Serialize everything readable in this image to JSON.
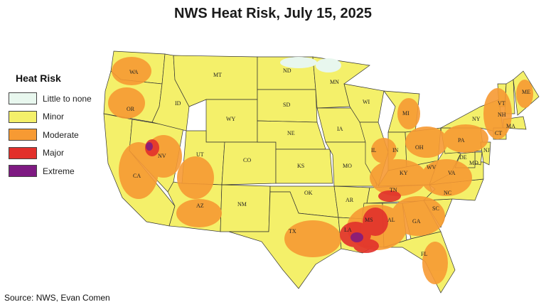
{
  "title": "NWS Heat Risk, July 15, 2025",
  "source": "Source: NWS, Evan Comen",
  "legend": {
    "title": "Heat Risk",
    "items": [
      {
        "label": "Little to none",
        "color": "#e8f7ee"
      },
      {
        "label": "Minor",
        "color": "#f4f06a"
      },
      {
        "label": "Moderate",
        "color": "#f79a33"
      },
      {
        "label": "Major",
        "color": "#e2302b"
      },
      {
        "label": "Extreme",
        "color": "#7e1a82"
      }
    ]
  },
  "states": [
    "WA",
    "OR",
    "CA",
    "NV",
    "ID",
    "MT",
    "WY",
    "UT",
    "AZ",
    "CO",
    "NM",
    "ND",
    "SD",
    "NE",
    "KS",
    "OK",
    "TX",
    "MN",
    "IA",
    "MO",
    "AR",
    "LA",
    "WI",
    "IL",
    "MI",
    "IN",
    "OH",
    "KY",
    "TN",
    "MS",
    "AL",
    "GA",
    "FL",
    "SC",
    "NC",
    "VA",
    "WV",
    "PA",
    "NY",
    "VT",
    "NH",
    "ME",
    "MA",
    "CT",
    "NJ",
    "DE",
    "MD"
  ],
  "heat_risk_by_state": {
    "WA": "Moderate",
    "OR": "Moderate",
    "CA": "Moderate",
    "NV": "Moderate",
    "ID": "Minor",
    "MT": "Minor",
    "WY": "Minor",
    "UT": "Moderate",
    "AZ": "Moderate",
    "CO": "Minor",
    "NM": "Minor",
    "ND": "Little to none",
    "SD": "Minor",
    "NE": "Minor",
    "KS": "Minor",
    "OK": "Minor",
    "TX": "Moderate",
    "MN": "Minor",
    "IA": "Minor",
    "MO": "Minor",
    "AR": "Moderate",
    "LA": "Major",
    "WI": "Minor",
    "IL": "Moderate",
    "MI": "Minor",
    "IN": "Moderate",
    "OH": "Moderate",
    "KY": "Moderate",
    "TN": "Moderate",
    "MS": "Major",
    "AL": "Moderate",
    "GA": "Moderate",
    "FL": "Moderate",
    "SC": "Moderate",
    "NC": "Moderate",
    "VA": "Moderate",
    "WV": "Moderate",
    "PA": "Moderate",
    "NY": "Moderate",
    "VT": "Moderate",
    "NH": "Moderate",
    "ME": "Moderate",
    "MA": "Moderate",
    "CT": "Moderate",
    "NJ": "Moderate",
    "DE": "Moderate",
    "MD": "Moderate"
  }
}
